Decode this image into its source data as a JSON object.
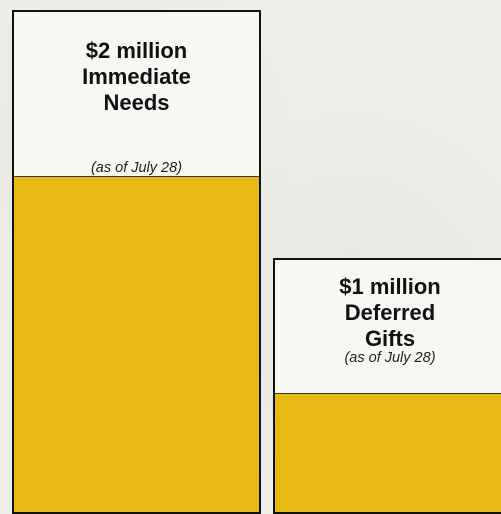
{
  "chart_data": {
    "type": "bar",
    "categories": [
      "$2 million Immediate Needs",
      "$1 million Deferred Gifts"
    ],
    "bars": [
      {
        "amount": "$2 million",
        "line1": "Immediate",
        "line2": "Needs",
        "note": "(as of July 28)",
        "goal": 2,
        "filled_fraction": 0.67
      },
      {
        "amount": "$1 million",
        "line1": "Deferred",
        "line2": "Gifts",
        "note": "(as of July 28)",
        "goal": 1,
        "filled_fraction": 0.47
      }
    ],
    "colors": {
      "fill": "#e7b914",
      "outline": "#111111",
      "background": "#f7f7f4"
    }
  }
}
